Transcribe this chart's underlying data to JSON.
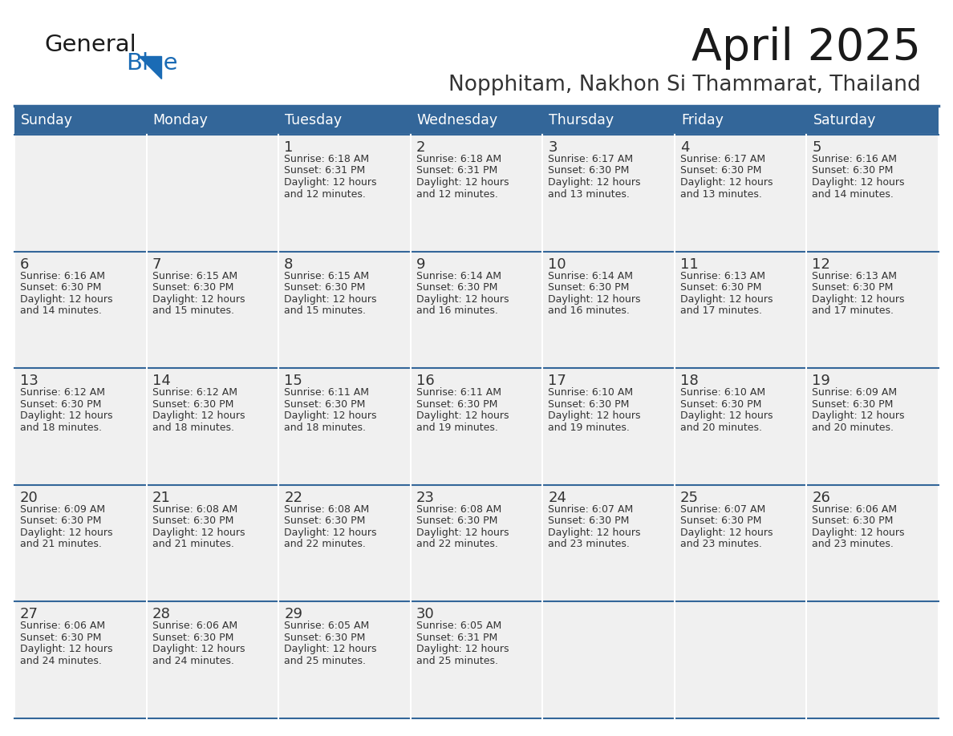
{
  "title": "April 2025",
  "subtitle": "Nopphitam, Nakhon Si Thammarat, Thailand",
  "days_of_week": [
    "Sunday",
    "Monday",
    "Tuesday",
    "Wednesday",
    "Thursday",
    "Friday",
    "Saturday"
  ],
  "header_bg": "#336699",
  "header_text": "#FFFFFF",
  "cell_bg": "#F0F0F0",
  "cell_bg_empty": "#EBEBEB",
  "divider_color": "#336699",
  "row_border_color": "#336699",
  "col_border_color": "#FFFFFF",
  "text_color": "#333333",
  "title_color": "#1a1a1a",
  "subtitle_color": "#333333",
  "logo_general_color": "#1a1a1a",
  "logo_blue_color": "#1a6bb5",
  "calendar": [
    [
      {
        "day": "",
        "sunrise": "",
        "sunset": "",
        "daylight": ""
      },
      {
        "day": "",
        "sunrise": "",
        "sunset": "",
        "daylight": ""
      },
      {
        "day": "1",
        "sunrise": "6:18 AM",
        "sunset": "6:31 PM",
        "daylight": "12 hours and 12 minutes."
      },
      {
        "day": "2",
        "sunrise": "6:18 AM",
        "sunset": "6:31 PM",
        "daylight": "12 hours and 12 minutes."
      },
      {
        "day": "3",
        "sunrise": "6:17 AM",
        "sunset": "6:30 PM",
        "daylight": "12 hours and 13 minutes."
      },
      {
        "day": "4",
        "sunrise": "6:17 AM",
        "sunset": "6:30 PM",
        "daylight": "12 hours and 13 minutes."
      },
      {
        "day": "5",
        "sunrise": "6:16 AM",
        "sunset": "6:30 PM",
        "daylight": "12 hours and 14 minutes."
      }
    ],
    [
      {
        "day": "6",
        "sunrise": "6:16 AM",
        "sunset": "6:30 PM",
        "daylight": "12 hours and 14 minutes."
      },
      {
        "day": "7",
        "sunrise": "6:15 AM",
        "sunset": "6:30 PM",
        "daylight": "12 hours and 15 minutes."
      },
      {
        "day": "8",
        "sunrise": "6:15 AM",
        "sunset": "6:30 PM",
        "daylight": "12 hours and 15 minutes."
      },
      {
        "day": "9",
        "sunrise": "6:14 AM",
        "sunset": "6:30 PM",
        "daylight": "12 hours and 16 minutes."
      },
      {
        "day": "10",
        "sunrise": "6:14 AM",
        "sunset": "6:30 PM",
        "daylight": "12 hours and 16 minutes."
      },
      {
        "day": "11",
        "sunrise": "6:13 AM",
        "sunset": "6:30 PM",
        "daylight": "12 hours and 17 minutes."
      },
      {
        "day": "12",
        "sunrise": "6:13 AM",
        "sunset": "6:30 PM",
        "daylight": "12 hours and 17 minutes."
      }
    ],
    [
      {
        "day": "13",
        "sunrise": "6:12 AM",
        "sunset": "6:30 PM",
        "daylight": "12 hours and 18 minutes."
      },
      {
        "day": "14",
        "sunrise": "6:12 AM",
        "sunset": "6:30 PM",
        "daylight": "12 hours and 18 minutes."
      },
      {
        "day": "15",
        "sunrise": "6:11 AM",
        "sunset": "6:30 PM",
        "daylight": "12 hours and 18 minutes."
      },
      {
        "day": "16",
        "sunrise": "6:11 AM",
        "sunset": "6:30 PM",
        "daylight": "12 hours and 19 minutes."
      },
      {
        "day": "17",
        "sunrise": "6:10 AM",
        "sunset": "6:30 PM",
        "daylight": "12 hours and 19 minutes."
      },
      {
        "day": "18",
        "sunrise": "6:10 AM",
        "sunset": "6:30 PM",
        "daylight": "12 hours and 20 minutes."
      },
      {
        "day": "19",
        "sunrise": "6:09 AM",
        "sunset": "6:30 PM",
        "daylight": "12 hours and 20 minutes."
      }
    ],
    [
      {
        "day": "20",
        "sunrise": "6:09 AM",
        "sunset": "6:30 PM",
        "daylight": "12 hours and 21 minutes."
      },
      {
        "day": "21",
        "sunrise": "6:08 AM",
        "sunset": "6:30 PM",
        "daylight": "12 hours and 21 minutes."
      },
      {
        "day": "22",
        "sunrise": "6:08 AM",
        "sunset": "6:30 PM",
        "daylight": "12 hours and 22 minutes."
      },
      {
        "day": "23",
        "sunrise": "6:08 AM",
        "sunset": "6:30 PM",
        "daylight": "12 hours and 22 minutes."
      },
      {
        "day": "24",
        "sunrise": "6:07 AM",
        "sunset": "6:30 PM",
        "daylight": "12 hours and 23 minutes."
      },
      {
        "day": "25",
        "sunrise": "6:07 AM",
        "sunset": "6:30 PM",
        "daylight": "12 hours and 23 minutes."
      },
      {
        "day": "26",
        "sunrise": "6:06 AM",
        "sunset": "6:30 PM",
        "daylight": "12 hours and 23 minutes."
      }
    ],
    [
      {
        "day": "27",
        "sunrise": "6:06 AM",
        "sunset": "6:30 PM",
        "daylight": "12 hours and 24 minutes."
      },
      {
        "day": "28",
        "sunrise": "6:06 AM",
        "sunset": "6:30 PM",
        "daylight": "12 hours and 24 minutes."
      },
      {
        "day": "29",
        "sunrise": "6:05 AM",
        "sunset": "6:30 PM",
        "daylight": "12 hours and 25 minutes."
      },
      {
        "day": "30",
        "sunrise": "6:05 AM",
        "sunset": "6:31 PM",
        "daylight": "12 hours and 25 minutes."
      },
      {
        "day": "",
        "sunrise": "",
        "sunset": "",
        "daylight": ""
      },
      {
        "day": "",
        "sunrise": "",
        "sunset": "",
        "daylight": ""
      },
      {
        "day": "",
        "sunrise": "",
        "sunset": "",
        "daylight": ""
      }
    ]
  ]
}
